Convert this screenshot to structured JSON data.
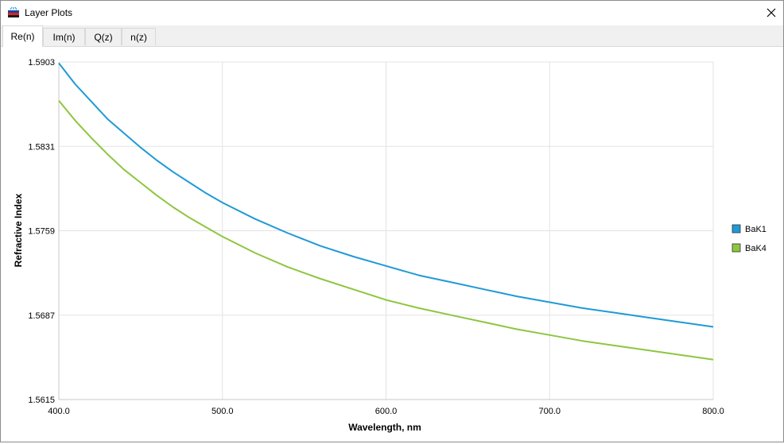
{
  "window": {
    "title": "Layer Plots",
    "icon": "layer-stack-icon",
    "close_icon": "close-icon"
  },
  "tabs": [
    {
      "label": "Re(n)",
      "active": true
    },
    {
      "label": "Im(n)",
      "active": false
    },
    {
      "label": "Q(z)",
      "active": false
    },
    {
      "label": "n(z)",
      "active": false
    }
  ],
  "chart_data": {
    "type": "line",
    "xlabel": "Wavelength, nm",
    "ylabel": "Refractive Index",
    "xlim": [
      400,
      800
    ],
    "ylim": [
      1.5615,
      1.5903
    ],
    "xticks": [
      "400.0",
      "500.0",
      "600.0",
      "700.0",
      "800.0"
    ],
    "yticks": [
      "1.5903",
      "1.5831",
      "1.5759",
      "1.5687",
      "1.5615"
    ],
    "grid": true,
    "legend_position": "right",
    "x": [
      400,
      410,
      420,
      430,
      440,
      450,
      460,
      470,
      480,
      490,
      500,
      520,
      540,
      560,
      580,
      600,
      620,
      640,
      660,
      680,
      700,
      720,
      740,
      760,
      780,
      800
    ],
    "series": [
      {
        "name": "BaK1",
        "color": "#1f9ad6",
        "values": [
          1.5902,
          1.5884,
          1.5869,
          1.5854,
          1.5842,
          1.583,
          1.5819,
          1.5809,
          1.58,
          1.5791,
          1.5783,
          1.5769,
          1.5757,
          1.5746,
          1.5737,
          1.5729,
          1.5721,
          1.5715,
          1.5709,
          1.5703,
          1.5698,
          1.5693,
          1.5689,
          1.5685,
          1.5681,
          1.5677
        ]
      },
      {
        "name": "BaK4",
        "color": "#8dc63f",
        "values": [
          1.587,
          1.5853,
          1.5838,
          1.5824,
          1.5811,
          1.58,
          1.5789,
          1.5779,
          1.577,
          1.5762,
          1.5754,
          1.574,
          1.5728,
          1.5718,
          1.5709,
          1.57,
          1.5693,
          1.5687,
          1.5681,
          1.5675,
          1.567,
          1.5665,
          1.5661,
          1.5657,
          1.5653,
          1.5649
        ]
      }
    ]
  }
}
